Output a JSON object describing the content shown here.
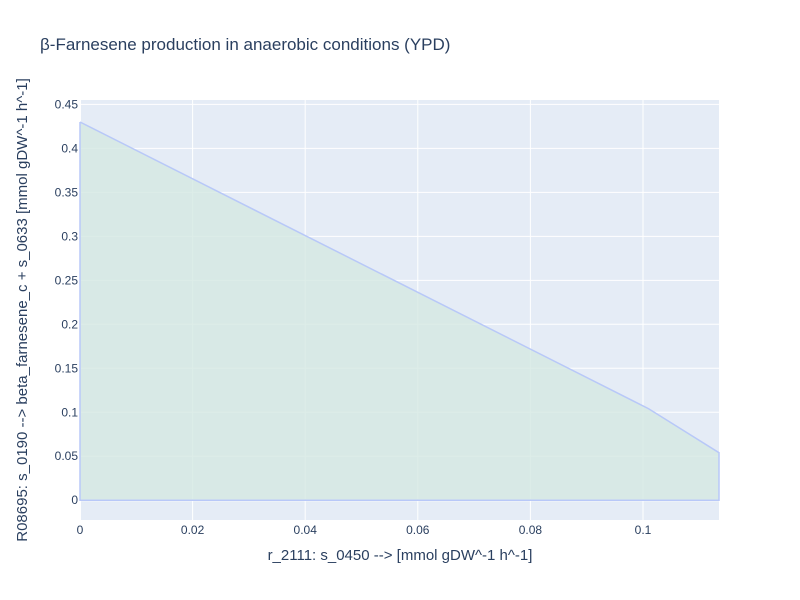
{
  "chart_data": {
    "type": "area",
    "title": "β-Farnesene production in anaerobic conditions (YPD)",
    "xlabel": "r_2111: s_0450 -->  [mmol gDW^-1 h^-1]",
    "ylabel": "R08695: s_0190 --> beta_farnesene_c + s_0633 [mmol gDW^-1 h^-1]",
    "xlim": [
      0,
      0.1135
    ],
    "ylim": [
      -0.0225,
      0.455
    ],
    "x_ticks": [
      0,
      0.02,
      0.04,
      0.06,
      0.08,
      0.1
    ],
    "x_tick_labels": [
      "0",
      "0.02",
      "0.04",
      "0.06",
      "0.08",
      "0.1"
    ],
    "y_ticks": [
      0,
      0.05,
      0.1,
      0.15,
      0.2,
      0.25,
      0.3,
      0.35,
      0.4,
      0.45
    ],
    "y_tick_labels": [
      "0",
      "0.05",
      "0.1",
      "0.15",
      "0.2",
      "0.25",
      "0.3",
      "0.35",
      "0.4",
      "0.45"
    ],
    "grid": true,
    "series": [
      {
        "upper": {
          "x": [
            0,
            0.101,
            0.1135
          ],
          "y": [
            0.43,
            0.104,
            0.054
          ]
        },
        "lower": {
          "x": [
            0,
            0.1135
          ],
          "y": [
            0,
            0
          ]
        }
      }
    ],
    "colors": {
      "plot_bg": "#e5ecf6",
      "grid": "#ffffff",
      "line": "#b8c8f8",
      "fill": "#d4e9e2"
    }
  }
}
